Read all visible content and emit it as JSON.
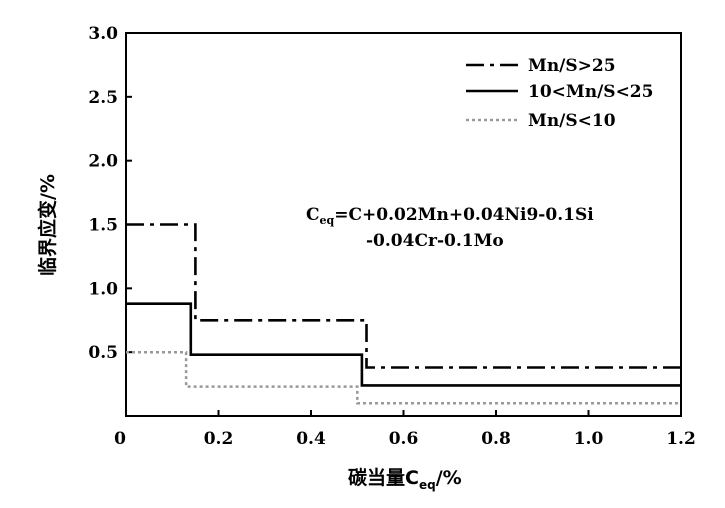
{
  "chart_data": {
    "type": "line",
    "xlabel": "碳当量C",
    "xlabel_sub": "eq",
    "xlabel_unit": "/%",
    "ylabel": "临界应变/%",
    "xlim": [
      0,
      1.2
    ],
    "ylim": [
      0,
      3.0
    ],
    "x_ticks": [
      0,
      0.2,
      0.4,
      0.6,
      0.8,
      1.0,
      1.2
    ],
    "x_tick_labels": [
      "0",
      "0.2",
      "0.4",
      "0.6",
      "0.8",
      "1.0",
      "1.2"
    ],
    "y_ticks": [
      0.5,
      1.0,
      1.5,
      2.0,
      2.5,
      3.0
    ],
    "y_tick_labels": [
      "0.5",
      "1.0",
      "1.5",
      "2.0",
      "2.5",
      "3.0"
    ],
    "grid": false,
    "legend_position": "top-right",
    "series": [
      {
        "name": "Mn/S>25",
        "style": "dashdot",
        "color": "#000000",
        "x": [
          0,
          0.15,
          0.15,
          0.52,
          0.52,
          1.2
        ],
        "y": [
          1.5,
          1.5,
          0.75,
          0.75,
          0.38,
          0.38
        ]
      },
      {
        "name": "10<Mn/S<25",
        "style": "solid",
        "color": "#000000",
        "x": [
          0,
          0.14,
          0.14,
          0.51,
          0.51,
          1.2
        ],
        "y": [
          0.88,
          0.88,
          0.48,
          0.48,
          0.24,
          0.24
        ]
      },
      {
        "name": "Mn/S<10",
        "style": "dotted",
        "color": "#999999",
        "x": [
          0,
          0.13,
          0.13,
          0.5,
          0.5,
          1.2
        ],
        "y": [
          0.5,
          0.5,
          0.23,
          0.23,
          0.1,
          0.1
        ]
      }
    ],
    "annotation": {
      "line1_main": "C",
      "line1_sub": "eq",
      "line1_rest": "=C+0.02Mn+0.04Ni9-0.1Si",
      "line2": "-0.04Cr-0.1Mo"
    }
  }
}
